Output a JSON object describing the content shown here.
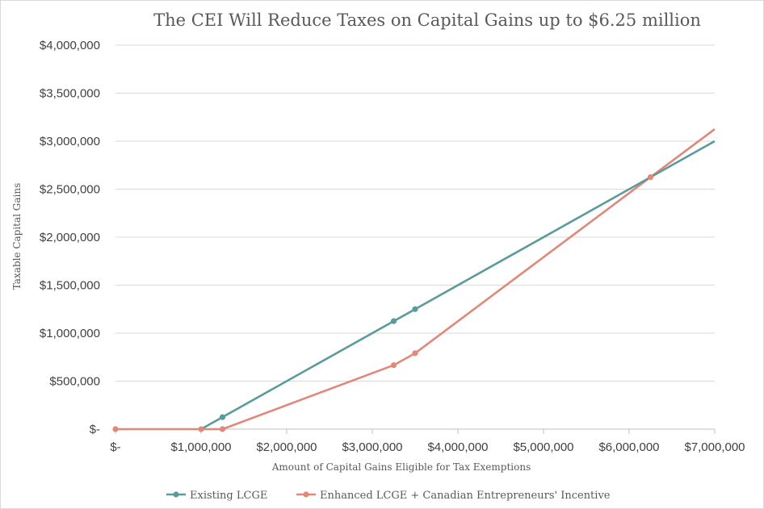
{
  "chart_data": {
    "type": "line",
    "title": "The CEI Will Reduce Taxes on Capital Gains up to $6.25 million",
    "xlabel": "Amount of Capital Gains Eligible for Tax Exemptions",
    "ylabel": "Taxable Capital Gains",
    "xlim": [
      0,
      7000000
    ],
    "ylim": [
      0,
      4000000
    ],
    "x_ticks": [
      0,
      1000000,
      2000000,
      3000000,
      4000000,
      5000000,
      6000000,
      7000000
    ],
    "x_tick_labels": [
      "$-",
      "$1,000,000",
      "$2,000,000",
      "$3,000,000",
      "$4,000,000",
      "$5,000,000",
      "$6,000,000",
      "$7,000,000"
    ],
    "y_ticks": [
      0,
      500000,
      1000000,
      1500000,
      2000000,
      2500000,
      3000000,
      3500000,
      4000000
    ],
    "y_tick_labels": [
      "$-",
      "$500,000",
      "$1,000,000",
      "$1,500,000",
      "$2,000,000",
      "$2,500,000",
      "$3,000,000",
      "$3,500,000",
      "$4,000,000"
    ],
    "grid": "horizontal",
    "legend_position": "bottom",
    "series": [
      {
        "name": "Existing LCGE",
        "color": "#5b9a9b",
        "points": [
          {
            "x": 1000000,
            "y": 0,
            "marker": false
          },
          {
            "x": 1250000,
            "y": 125000,
            "marker": true
          },
          {
            "x": 3250000,
            "y": 1125000,
            "marker": true
          },
          {
            "x": 3500000,
            "y": 1250000,
            "marker": true
          },
          {
            "x": 7000000,
            "y": 3000000,
            "marker": false
          }
        ]
      },
      {
        "name": "Enhanced LCGE + Canadian Entrepreneurs' Incentive",
        "color": "#e0887a",
        "points": [
          {
            "x": 0,
            "y": 0,
            "marker": true
          },
          {
            "x": 1000000,
            "y": 0,
            "marker": true
          },
          {
            "x": 1250000,
            "y": 0,
            "marker": true
          },
          {
            "x": 3250000,
            "y": 666000,
            "marker": true
          },
          {
            "x": 3500000,
            "y": 791000,
            "marker": true
          },
          {
            "x": 6250000,
            "y": 2625000,
            "marker": true
          },
          {
            "x": 7000000,
            "y": 3125000,
            "marker": false
          }
        ]
      }
    ]
  }
}
